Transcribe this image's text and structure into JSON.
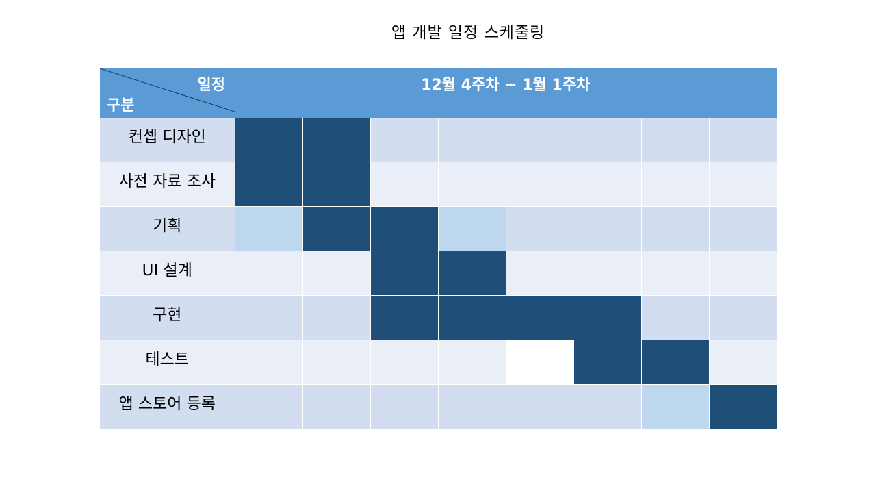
{
  "title": "앱 개발 일정 스케줄링",
  "header": {
    "corner_top": "일정",
    "corner_bottom": "구분",
    "period": "12월 4주차 ~ 1월 1주차"
  },
  "weeks_count": 8,
  "colors": {
    "header": "#5b9bd5",
    "active": "#1f4e79",
    "partial": "#bdd7ee",
    "band_a": "#d2deef",
    "band_b": "#eaeff7"
  },
  "tasks": [
    {
      "label": "컨셉 디자인",
      "weeks": [
        "active",
        "active",
        "none",
        "none",
        "none",
        "none",
        "none",
        "none"
      ]
    },
    {
      "label": "사전 자료 조사",
      "weeks": [
        "active",
        "active",
        "none",
        "none",
        "none",
        "none",
        "none",
        "none"
      ]
    },
    {
      "label": "기획",
      "weeks": [
        "partial",
        "active",
        "active",
        "partial",
        "none",
        "none",
        "none",
        "none"
      ]
    },
    {
      "label": "UI 설계",
      "weeks": [
        "none",
        "none",
        "active",
        "active",
        "none",
        "none",
        "none",
        "none"
      ]
    },
    {
      "label": "구현",
      "weeks": [
        "none",
        "none",
        "active",
        "active",
        "active",
        "active",
        "none",
        "none"
      ]
    },
    {
      "label": "테스트",
      "weeks": [
        "none",
        "none",
        "none",
        "none",
        "blank",
        "active",
        "active",
        "none"
      ]
    },
    {
      "label": "앱 스토어 등록",
      "weeks": [
        "none",
        "none",
        "none",
        "none",
        "none",
        "none",
        "partial",
        "active"
      ]
    }
  ]
}
